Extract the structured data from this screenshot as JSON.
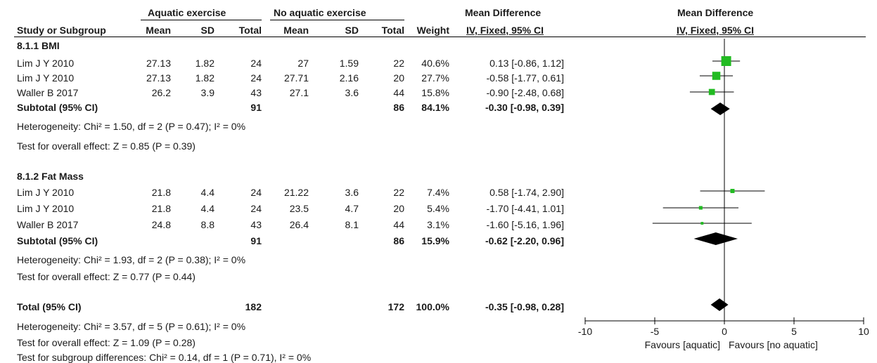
{
  "header": {
    "group1": "Aquatic exercise",
    "group2": "No aquatic exercise",
    "md_left": "Mean Difference",
    "md_right": "Mean Difference",
    "col_study": "Study or Subgroup",
    "col_mean1": "Mean",
    "col_sd1": "SD",
    "col_total1": "Total",
    "col_mean2": "Mean",
    "col_sd2": "SD",
    "col_total2": "Total",
    "col_weight": "Weight",
    "col_method_left": "IV, Fixed, 95% CI",
    "col_method_right": "IV, Fixed, 95% CI"
  },
  "subgroups": [
    {
      "title": "8.1.1 BMI",
      "studies": [
        {
          "name": "Lim J Y 2010",
          "mean1": "27.13",
          "sd1": "1.82",
          "total1": "24",
          "mean2": "27",
          "sd2": "1.59",
          "total2": "22",
          "weight": "40.6%",
          "ci": "0.13 [-0.86, 1.12]"
        },
        {
          "name": "Lim J Y 2010",
          "mean1": "27.13",
          "sd1": "1.82",
          "total1": "24",
          "mean2": "27.71",
          "sd2": "2.16",
          "total2": "20",
          "weight": "27.7%",
          "ci": "-0.58 [-1.77, 0.61]"
        },
        {
          "name": "Waller B 2017",
          "mean1": "26.2",
          "sd1": "3.9",
          "total1": "43",
          "mean2": "27.1",
          "sd2": "3.6",
          "total2": "44",
          "weight": "15.8%",
          "ci": "-0.90 [-2.48, 0.68]"
        }
      ],
      "subtotal": {
        "label": "Subtotal (95% CI)",
        "total1": "91",
        "total2": "86",
        "weight": "84.1%",
        "ci": "-0.30 [-0.98, 0.39]"
      },
      "heterogeneity": "Heterogeneity: Chi² = 1.50, df = 2 (P = 0.47); I² = 0%",
      "overall": "Test for overall effect: Z = 0.85 (P = 0.39)"
    },
    {
      "title": "8.1.2 Fat Mass",
      "studies": [
        {
          "name": "Lim J Y 2010",
          "mean1": "21.8",
          "sd1": "4.4",
          "total1": "24",
          "mean2": "21.22",
          "sd2": "3.6",
          "total2": "22",
          "weight": "7.4%",
          "ci": "0.58 [-1.74, 2.90]"
        },
        {
          "name": "Lim J Y 2010",
          "mean1": "21.8",
          "sd1": "4.4",
          "total1": "24",
          "mean2": "23.5",
          "sd2": "4.7",
          "total2": "20",
          "weight": "5.4%",
          "ci": "-1.70 [-4.41, 1.01]"
        },
        {
          "name": "Waller B 2017",
          "mean1": "24.8",
          "sd1": "8.8",
          "total1": "43",
          "mean2": "26.4",
          "sd2": "8.1",
          "total2": "44",
          "weight": "3.1%",
          "ci": "-1.60 [-5.16, 1.96]"
        }
      ],
      "subtotal": {
        "label": "Subtotal (95% CI)",
        "total1": "91",
        "total2": "86",
        "weight": "15.9%",
        "ci": "-0.62 [-2.20, 0.96]"
      },
      "heterogeneity": "Heterogeneity: Chi² = 1.93, df = 2 (P = 0.38); I² = 0%",
      "overall": "Test for overall effect: Z = 0.77 (P = 0.44)"
    }
  ],
  "total": {
    "label": "Total (95% CI)",
    "total1": "182",
    "total2": "172",
    "weight": "100.0%",
    "ci": "-0.35 [-0.98, 0.28]",
    "heterogeneity": "Heterogeneity: Chi² = 3.57, df = 5 (P = 0.61); I² = 0%",
    "overall": "Test for overall effect: Z = 1.09 (P = 0.28)",
    "subgroup_diff": "Test for subgroup differences: Chi² = 0.14, df = 1 (P = 0.71), I² = 0%"
  },
  "chart_data": {
    "type": "forest",
    "xlim": [
      -10,
      10
    ],
    "ticks": [
      -10,
      -5,
      0,
      5,
      10
    ],
    "tick_labels": [
      "-10",
      "-5",
      "0",
      "5",
      "10"
    ],
    "favours_left": "Favours [aquatic]",
    "favours_right": "Favours [no aquatic]",
    "study_color": "#22bb22",
    "points": [
      {
        "md": 0.13,
        "lo": -0.86,
        "hi": 1.12,
        "weight": 40.6,
        "kind": "study"
      },
      {
        "md": -0.58,
        "lo": -1.77,
        "hi": 0.61,
        "weight": 27.7,
        "kind": "study"
      },
      {
        "md": -0.9,
        "lo": -2.48,
        "hi": 0.68,
        "weight": 15.8,
        "kind": "study"
      },
      {
        "md": -0.3,
        "lo": -0.98,
        "hi": 0.39,
        "weight": 84.1,
        "kind": "diamond"
      },
      {
        "md": 0.58,
        "lo": -1.74,
        "hi": 2.9,
        "weight": 7.4,
        "kind": "study"
      },
      {
        "md": -1.7,
        "lo": -4.41,
        "hi": 1.01,
        "weight": 5.4,
        "kind": "study"
      },
      {
        "md": -1.6,
        "lo": -5.16,
        "hi": 1.96,
        "weight": 3.1,
        "kind": "study"
      },
      {
        "md": -0.62,
        "lo": -2.2,
        "hi": 0.96,
        "weight": 15.9,
        "kind": "diamond"
      },
      {
        "md": -0.35,
        "lo": -0.98,
        "hi": 0.28,
        "weight": 100.0,
        "kind": "diamond"
      }
    ]
  }
}
